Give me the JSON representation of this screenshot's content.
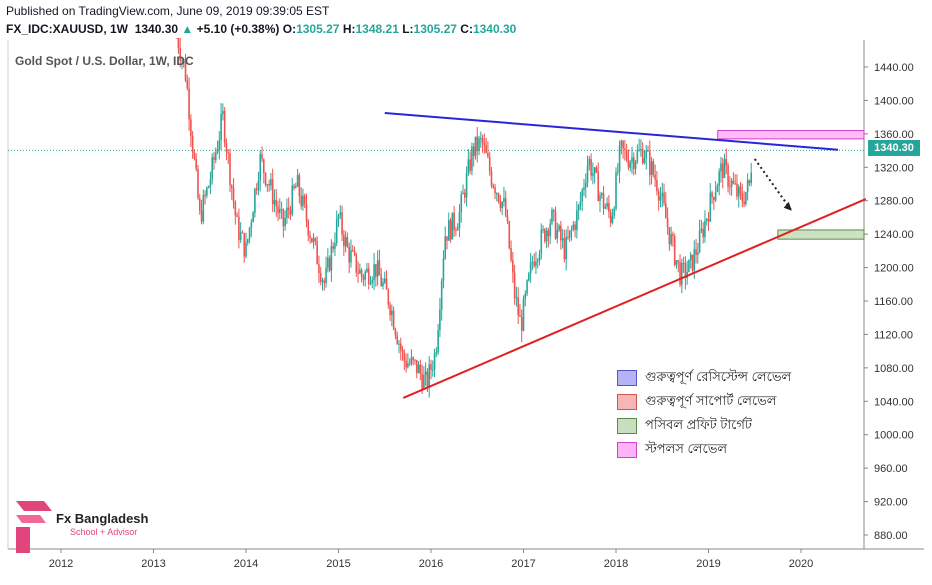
{
  "header": {
    "published": "Published on TradingView.com, June 09, 2019 09:39:05 EST",
    "symbol": "FX_IDC:XAUUSD, 1W",
    "last": "1340.30",
    "arrow": "▲",
    "change": "+5.10 (+0.38%)",
    "o_label": "O:",
    "o_val": "1305.27",
    "h_label": "H:",
    "h_val": "1348.21",
    "l_label": "L:",
    "l_val": "1305.27",
    "c_label": "C:",
    "c_val": "1340.30"
  },
  "chart_title": "Gold Spot / U.S. Dollar, 1W, IDC",
  "price_label": "1340.30",
  "legend": [
    {
      "label": "গুরুত্বপূর্ণ রেসিস্টেন্স লেভেল",
      "color": "#b3b3f5",
      "border": "#5555cc"
    },
    {
      "label": "গুরুত্বপূর্ণ সাপোর্ট লেভেল",
      "color": "#f7b5b5",
      "border": "#cc5555"
    },
    {
      "label": "পসিবল প্রফিট টার্গেট",
      "color": "#c8dfbf",
      "border": "#5a8a4a"
    },
    {
      "label": "স্টপলস লেভেল",
      "color": "#ffb3f7",
      "border": "#cc44cc"
    }
  ],
  "logo": {
    "title": "Fx Bangladesh",
    "subtitle": "School + Advisor"
  },
  "colors": {
    "up": "#26a69a",
    "down": "#ef5350",
    "resistance": "#2727d9",
    "support": "#e02020"
  },
  "chart_data": {
    "type": "candlestick",
    "x_ticks": [
      "2012",
      "2013",
      "2014",
      "2015",
      "2016",
      "2017",
      "2018",
      "2019",
      "2020"
    ],
    "y_ticks": [
      1440,
      1400,
      1360,
      1320,
      1280,
      1240,
      1200,
      1160,
      1120,
      1080,
      1040,
      1000,
      960,
      920,
      880
    ],
    "y_tick_labels": [
      "1440.00",
      "1400.00",
      "1360.00",
      "1320.00",
      "1280.00",
      "1240.00",
      "1200.00",
      "1160.00",
      "1120.00",
      "1080.00",
      "1040.00",
      "1000.00",
      "960.00",
      "920.00",
      "880.00"
    ],
    "ylim": [
      860,
      1470
    ],
    "last_price": 1340.3,
    "trendlines": [
      {
        "name": "resistance",
        "from": [
          2015.5,
          1385
        ],
        "to": [
          2020.4,
          1341
        ]
      },
      {
        "name": "support",
        "from": [
          2015.7,
          1044
        ],
        "to": [
          2020.7,
          1282
        ]
      }
    ],
    "zones": [
      {
        "name": "stop-loss",
        "x": [
          2019.1,
          2020.7
        ],
        "y": [
          1354,
          1364
        ]
      },
      {
        "name": "profit-target",
        "x": [
          2019.75,
          2020.7
        ],
        "y": [
          1234,
          1245
        ]
      }
    ],
    "projection": {
      "from": [
        2019.5,
        1330
      ],
      "to": [
        2019.9,
        1268
      ]
    },
    "price_path": [
      [
        2013.25,
        1480
      ],
      [
        2013.35,
        1430
      ],
      [
        2013.5,
        1260
      ],
      [
        2013.6,
        1300
      ],
      [
        2013.75,
        1380
      ],
      [
        2013.9,
        1250
      ],
      [
        2014.0,
        1220
      ],
      [
        2014.15,
        1330
      ],
      [
        2014.25,
        1300
      ],
      [
        2014.4,
        1250
      ],
      [
        2014.55,
        1300
      ],
      [
        2014.7,
        1240
      ],
      [
        2014.85,
        1180
      ],
      [
        2015.0,
        1260
      ],
      [
        2015.1,
        1220
      ],
      [
        2015.25,
        1190
      ],
      [
        2015.4,
        1200
      ],
      [
        2015.55,
        1160
      ],
      [
        2015.7,
        1090
      ],
      [
        2015.85,
        1080
      ],
      [
        2015.95,
        1060
      ],
      [
        2016.05,
        1100
      ],
      [
        2016.15,
        1240
      ],
      [
        2016.3,
        1260
      ],
      [
        2016.45,
        1340
      ],
      [
        2016.55,
        1350
      ],
      [
        2016.65,
        1310
      ],
      [
        2016.8,
        1270
      ],
      [
        2016.9,
        1170
      ],
      [
        2016.97,
        1130
      ],
      [
        2017.1,
        1210
      ],
      [
        2017.3,
        1260
      ],
      [
        2017.45,
        1220
      ],
      [
        2017.6,
        1270
      ],
      [
        2017.7,
        1330
      ],
      [
        2017.85,
        1280
      ],
      [
        2017.95,
        1260
      ],
      [
        2018.05,
        1340
      ],
      [
        2018.15,
        1330
      ],
      [
        2018.3,
        1340
      ],
      [
        2018.45,
        1300
      ],
      [
        2018.6,
        1230
      ],
      [
        2018.7,
        1190
      ],
      [
        2018.8,
        1200
      ],
      [
        2018.9,
        1230
      ],
      [
        2019.05,
        1290
      ],
      [
        2019.15,
        1320
      ],
      [
        2019.25,
        1300
      ],
      [
        2019.35,
        1280
      ],
      [
        2019.45,
        1300
      ],
      [
        2019.47,
        1340
      ]
    ]
  }
}
